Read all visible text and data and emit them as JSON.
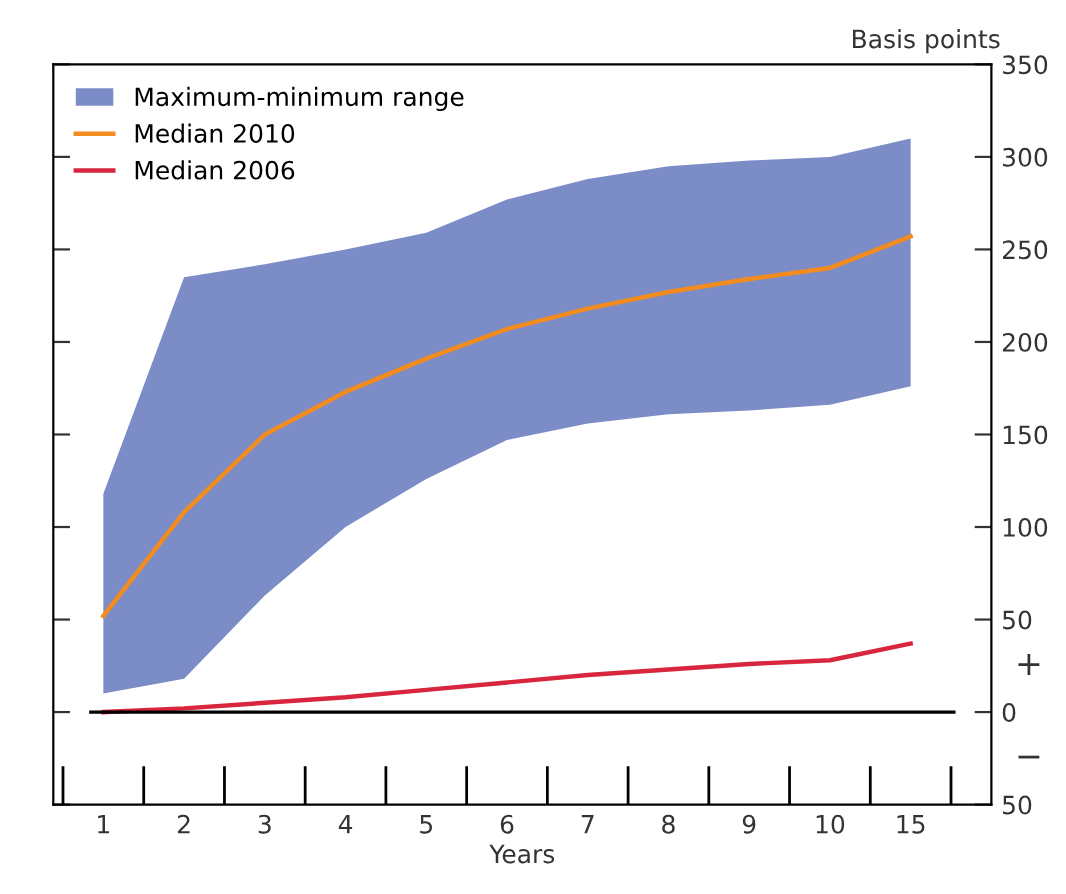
{
  "chart_data": {
    "type": "line",
    "xlabel": "Years",
    "ylabel": "Basis points",
    "categories": [
      "1",
      "2",
      "3",
      "4",
      "5",
      "6",
      "7",
      "8",
      "9",
      "10",
      "15"
    ],
    "series": [
      {
        "name": "Median 2010",
        "color": "#f28c1e",
        "values": [
          52,
          108,
          150,
          173,
          191,
          207,
          218,
          227,
          234,
          240,
          257
        ],
        "lower": [
          10,
          18,
          63,
          100,
          126,
          147,
          156,
          161,
          163,
          166,
          176
        ],
        "upper": [
          118,
          235,
          242,
          250,
          259,
          277,
          288,
          295,
          298,
          300,
          310
        ]
      },
      {
        "name": "Median 2006",
        "color": "#d7263d",
        "values": [
          0,
          2,
          5,
          8,
          12,
          16,
          20,
          23,
          26,
          28,
          37
        ]
      }
    ],
    "ylim": [
      -50,
      350
    ],
    "yticks": [
      {
        "value": -50,
        "label": "50"
      },
      0,
      50,
      100,
      150,
      200,
      250,
      300,
      350
    ],
    "ref_lines": [
      {
        "axis": "y",
        "value": 0,
        "color": "#000000"
      }
    ],
    "annotations": [
      "Maximum-minimum range",
      "+",
      "−"
    ],
    "legend": "top left",
    "grid": false
  }
}
